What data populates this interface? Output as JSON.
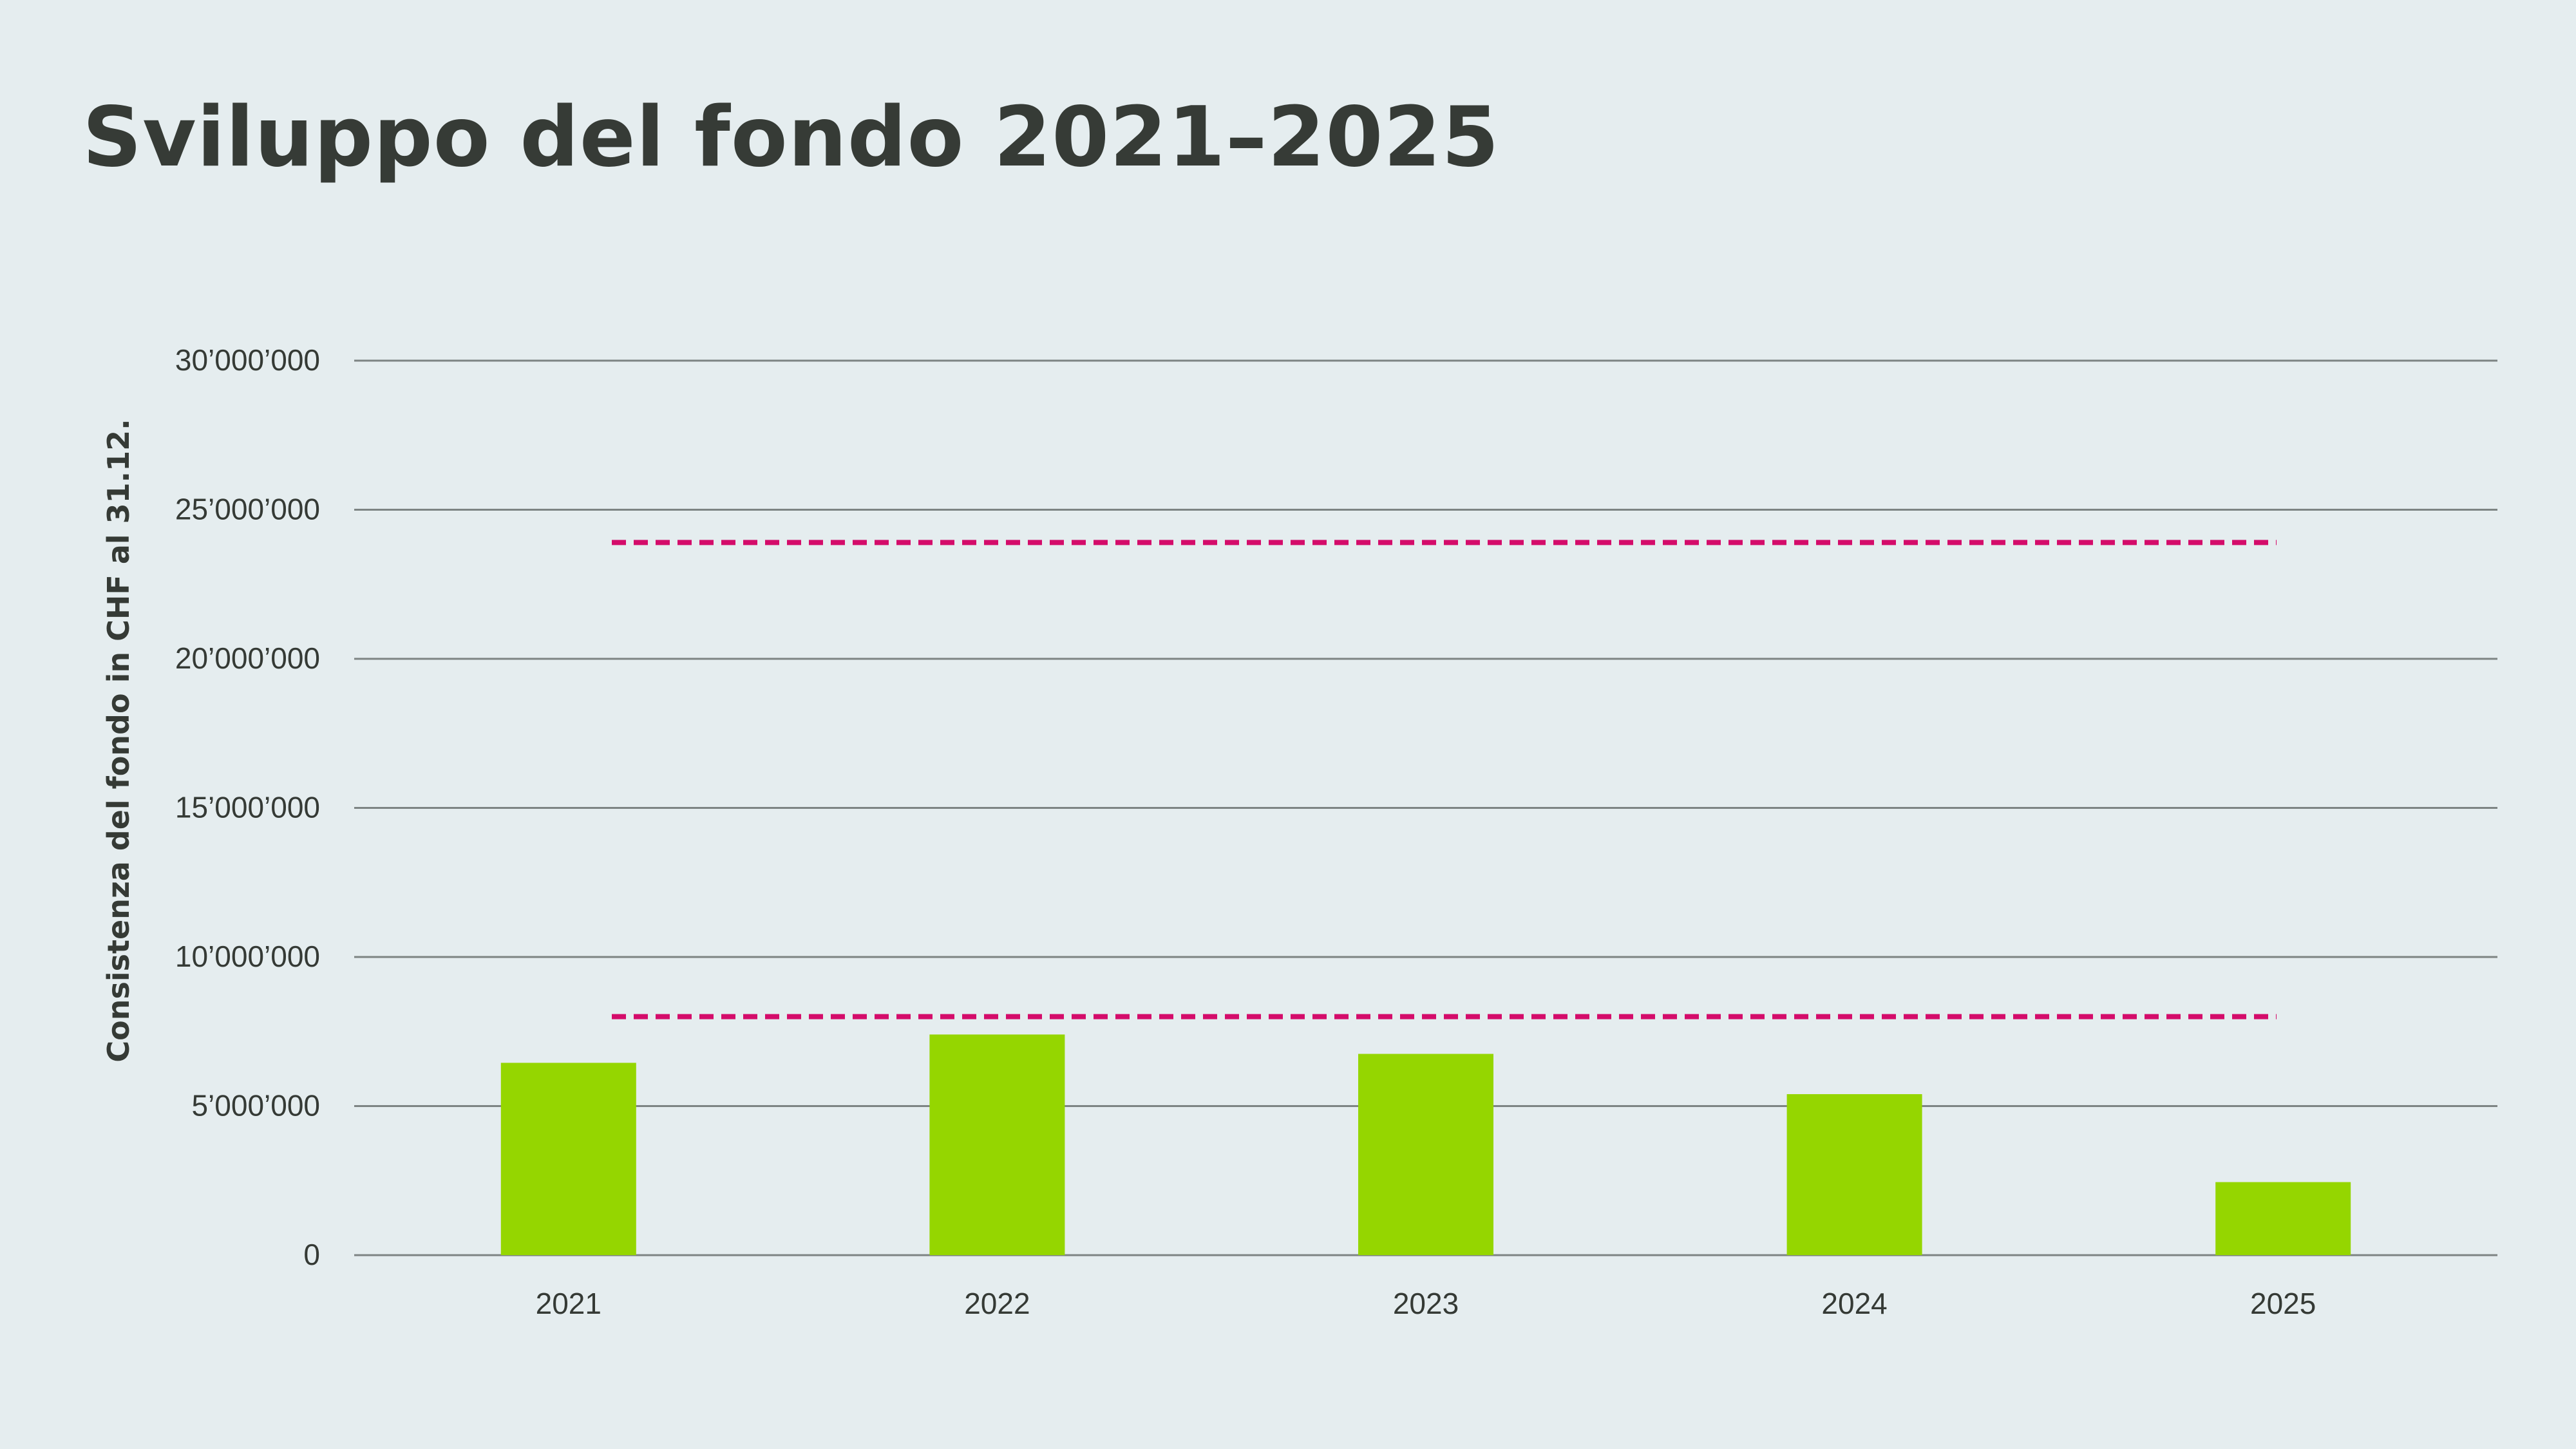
{
  "title": "Sviluppo del fondo 2021–2025",
  "colors": {
    "background": "#e5edef",
    "bar": "#95d600",
    "reference_line": "#d40c6a",
    "grid": "#7d8483",
    "text": "#353a35"
  },
  "chart_data": {
    "type": "bar",
    "ylabel": "Consistenza del fondo in CHF al 31.12.",
    "categories": [
      "2021",
      "2022",
      "2023",
      "2024",
      "2025"
    ],
    "values": [
      6450000,
      7400000,
      6750000,
      5400000,
      2450000
    ],
    "ylim": [
      0,
      30000000
    ],
    "yticks": [
      0,
      5000000,
      10000000,
      15000000,
      20000000,
      25000000,
      30000000
    ],
    "ytick_labels": [
      "0",
      "5’000’000",
      "10’000’000",
      "15’000’000",
      "20’000’000",
      "25’000’000",
      "30’000’000"
    ],
    "grid": true,
    "reference_lines": [
      {
        "value": 23900000,
        "style": "dashed"
      },
      {
        "value": 8000000,
        "style": "dashed"
      }
    ]
  }
}
